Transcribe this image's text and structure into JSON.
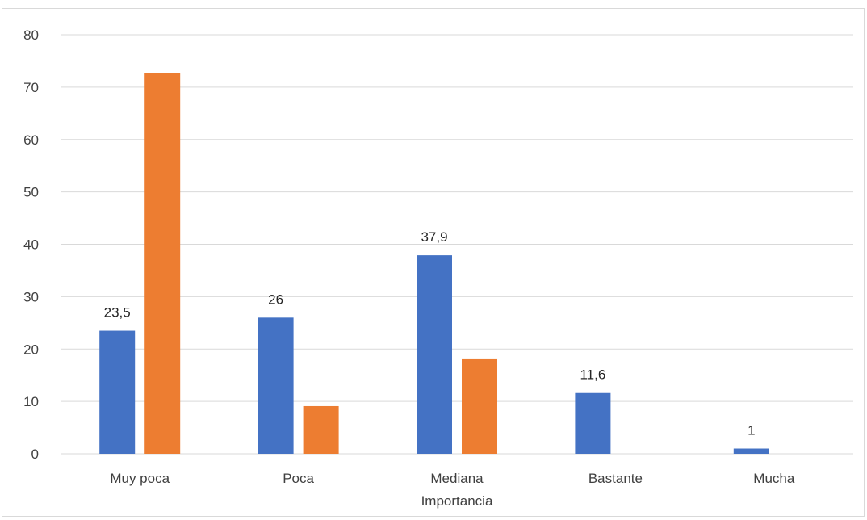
{
  "chart_data": {
    "type": "bar",
    "categories": [
      [
        "Muy poca"
      ],
      [
        "Poca"
      ],
      [
        "Mediana",
        "Importancia"
      ],
      [
        "Bastante"
      ],
      [
        "Mucha"
      ]
    ],
    "series": [
      {
        "values": [
          23.5,
          26,
          37.9,
          11.6,
          1
        ],
        "labels": [
          "23,5",
          "26",
          "37,9",
          "11,6",
          "1"
        ],
        "color": "#4472c4"
      },
      {
        "values": [
          72.7,
          9.1,
          18.2,
          null,
          null
        ],
        "labels": [],
        "color": "#ed7d31"
      }
    ],
    "yticks": [
      "0",
      "10",
      "20",
      "30",
      "40",
      "50",
      "60",
      "70",
      "80"
    ],
    "ylim": [
      0,
      80
    ],
    "grid": true,
    "gridColor": "#d9d9d9",
    "title": "",
    "xlabel": "",
    "ylabel": "",
    "legend": "none"
  }
}
